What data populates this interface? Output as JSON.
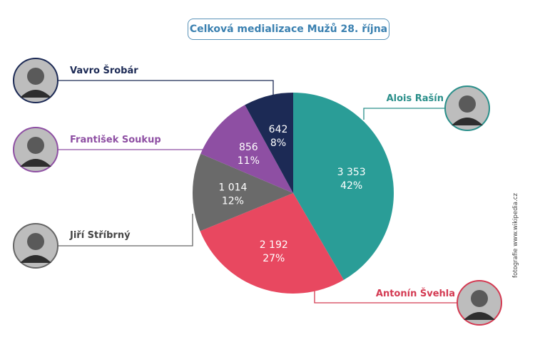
{
  "chart_data": {
    "type": "pie",
    "title": "Celková medializace Mužů 28. října",
    "start": "12 o'clock, clockwise",
    "slices": [
      {
        "name": "Alois Rašín",
        "value": 3353,
        "value_label": "3 353",
        "percent_label": "42%",
        "color": "#2a9d97"
      },
      {
        "name": "Antonín Švehla",
        "value": 2192,
        "value_label": "2 192",
        "percent_label": "27%",
        "color": "#e84860"
      },
      {
        "name": "Jiří Stříbrný",
        "value": 1014,
        "value_label": "1 014",
        "percent_label": "12%",
        "color": "#6a6a6a"
      },
      {
        "name": "František Soukup",
        "value": 856,
        "value_label": "856",
        "percent_label": "11%",
        "color": "#8e4fa3"
      },
      {
        "name": "Vavro Šrobár",
        "value": 642,
        "value_label": "642",
        "percent_label": "8%",
        "color": "#1c2a55"
      }
    ]
  },
  "credit": "fotografie www.wikipedia.cz"
}
